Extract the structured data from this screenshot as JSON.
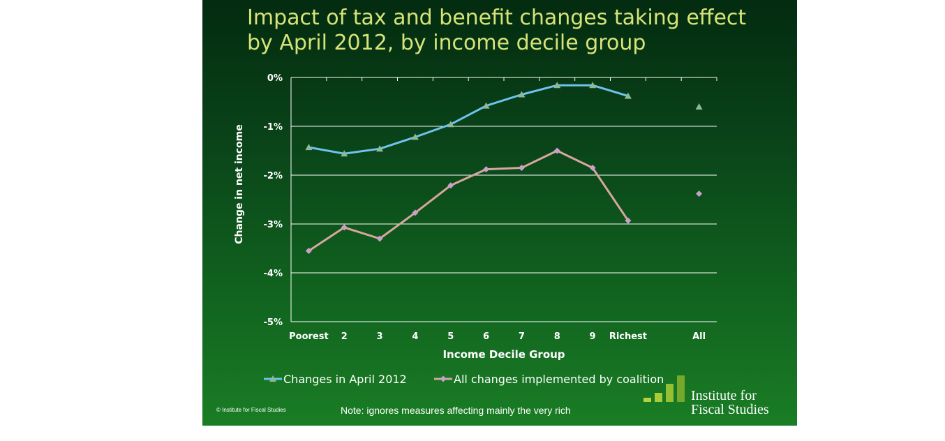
{
  "slide": {
    "title": "Impact of tax and benefit changes taking effect by April 2012, by income decile group",
    "copyright": "© Institute for Fiscal Studies",
    "note": "Note: ignores measures affecting mainly the very rich",
    "logo_line1": "Institute for",
    "logo_line2": "Fiscal Studies"
  },
  "colors": {
    "series1": "#6fc3ee",
    "series2": "#d8a6a0",
    "marker1": "#8fb896",
    "marker2": "#c9a0c9",
    "grid": "#ffffff",
    "title": "#d6e377",
    "logo_bars": [
      "#b4d23c",
      "#a8cd34",
      "#94c032",
      "#76a82c"
    ]
  },
  "chart_data": {
    "type": "line",
    "title": "",
    "xlabel": "Income Decile Group",
    "ylabel": "Change in net income",
    "categories": [
      "Poorest",
      "2",
      "3",
      "4",
      "5",
      "6",
      "7",
      "8",
      "9",
      "Richest",
      "",
      "All"
    ],
    "ylim": [
      -5,
      0
    ],
    "yticks": [
      0,
      -1,
      -2,
      -3,
      -4,
      -5
    ],
    "ytick_labels": [
      "0%",
      "-1%",
      "-2%",
      "-3%",
      "-4%",
      "-5%"
    ],
    "grid": true,
    "legend": "bottom",
    "series": [
      {
        "name": "Changes in April 2012",
        "values": [
          -1.43,
          -1.56,
          -1.46,
          -1.22,
          -0.96,
          -0.58,
          -0.35,
          -0.16,
          -0.16,
          -0.38,
          null,
          -0.6
        ],
        "connected_through": 9
      },
      {
        "name": "All changes implemented by coalition",
        "values": [
          -3.55,
          -3.07,
          -3.3,
          -2.77,
          -2.21,
          -1.88,
          -1.85,
          -1.5,
          -1.85,
          -2.93,
          null,
          -2.38
        ],
        "connected_through": 9
      }
    ]
  }
}
